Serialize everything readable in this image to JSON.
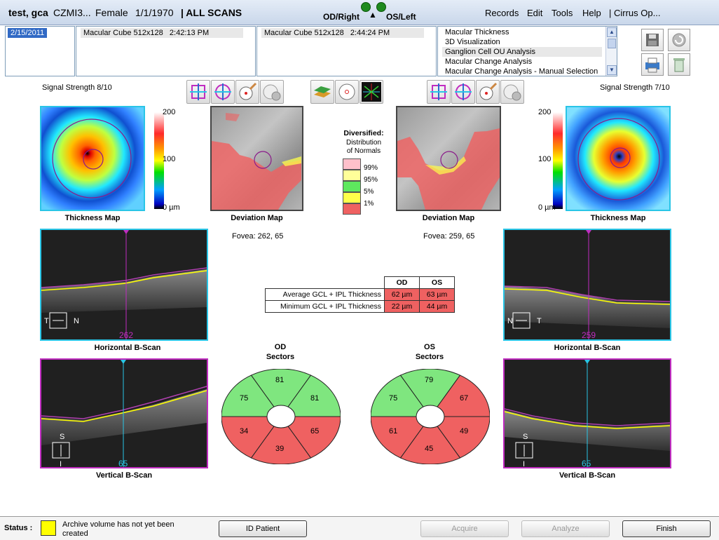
{
  "header": {
    "patient_name": "test, gca",
    "id": "CZMI3...",
    "sex": "Female",
    "dob": "1/1/1970",
    "scans_label": "| ALL SCANS",
    "od_label": "OD/Right",
    "os_label": "OS/Left",
    "menus": [
      "Records",
      "Edit",
      "Tools",
      "Help",
      "| Cirrus Op..."
    ]
  },
  "dates": [
    "2/15/2011"
  ],
  "scan1": {
    "name": "Macular Cube 512x128",
    "time": "2:42:13 PM"
  },
  "scan2": {
    "name": "Macular Cube 512x128",
    "time": "2:44:24 PM"
  },
  "analyses": [
    "Macular Thickness",
    "3D Visualization",
    "Ganglion Cell OU Analysis",
    "Macular Change Analysis",
    "Macular Change Analysis - Manual Selection"
  ],
  "od": {
    "signal": "Signal Strength  8/10",
    "fovea": "Fovea:   262, 65",
    "h_pos": "262",
    "v_pos": "65",
    "sectors": {
      "top": "81",
      "upper_left": "75",
      "upper_right": "81",
      "lower_left": "34",
      "bottom": "39",
      "lower_right": "65"
    },
    "sectors_title": [
      "OD",
      "Sectors"
    ],
    "h_orient": [
      "T",
      "N"
    ],
    "v_orient": [
      "S",
      "I"
    ]
  },
  "os": {
    "signal": "Signal Strength  7/10",
    "fovea": "Fovea:   259, 65",
    "h_pos": "259",
    "v_pos": "65",
    "sectors": {
      "top": "79",
      "upper_left": "75",
      "upper_right": "67",
      "lower_left": "61",
      "bottom": "45",
      "lower_right": "49"
    },
    "sectors_title": [
      "OS",
      "Sectors"
    ],
    "h_orient": [
      "N",
      "T"
    ],
    "v_orient": [
      "S",
      "I"
    ]
  },
  "scale": {
    "max": "200",
    "mid": "100",
    "min": "0 µm"
  },
  "captions": {
    "thickness": "Thickness Map",
    "deviation": "Deviation Map",
    "horizontal": "Horizontal B-Scan",
    "vertical": "Vertical B-Scan"
  },
  "legend": {
    "title": "Diversified:",
    "sub1": "Distribution",
    "sub2": "of Normals",
    "levels": [
      {
        "label": "99%",
        "color": "#ffc0cb"
      },
      {
        "label": "95%",
        "color": "#ffff99"
      },
      {
        "label": "5%",
        "color": "#5ee85e"
      },
      {
        "label": "1%",
        "color": "#ffff4a"
      },
      {
        "label": "",
        "color": "#ef6161"
      }
    ]
  },
  "table": {
    "headers": [
      "",
      "OD",
      "OS"
    ],
    "rows": [
      {
        "label": "Average GCL + IPL Thickness",
        "od": "62 µm",
        "os": "63 µm"
      },
      {
        "label": "Minimum GCL + IPL Thickness",
        "od": "22 µm",
        "os": "44 µm"
      }
    ]
  },
  "colors": {
    "normal": "#7fe67f",
    "abnormal": "#ef6161",
    "cyan": "#29c5e6",
    "magenta": "#c02cc0"
  },
  "status": {
    "label": "Status :",
    "color": "#ffff00",
    "message_line1": "Archive volume has not yet been",
    "message_line2": "created"
  },
  "buttons": {
    "id_patient": "ID Patient",
    "acquire": "Acquire",
    "analyze": "Analyze",
    "finish": "Finish"
  }
}
